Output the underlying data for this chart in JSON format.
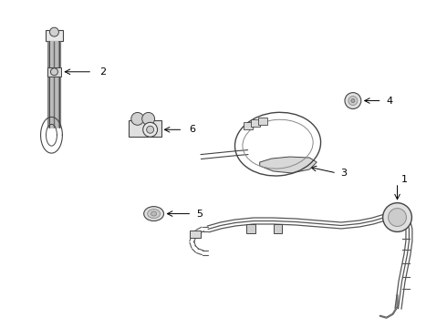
{
  "background_color": "#ffffff",
  "fig_width": 4.9,
  "fig_height": 3.6,
  "dpi": 100,
  "line_color": "#444444",
  "label_color": "#000000",
  "label_fontsize": 8,
  "arrow_lw": 0.7
}
